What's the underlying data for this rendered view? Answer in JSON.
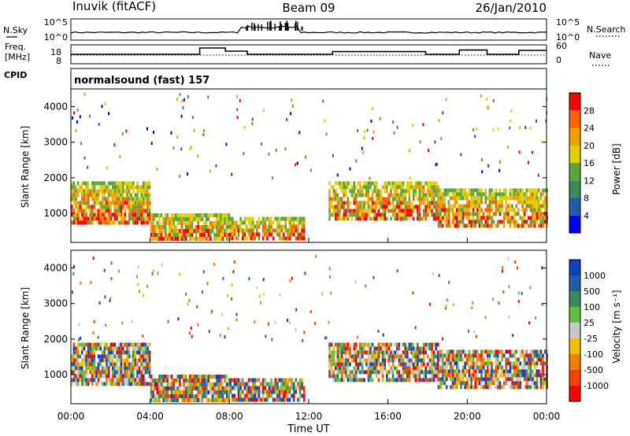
{
  "header": {
    "station": "Inuvik (fitACF)",
    "beam": "Beam 09",
    "date": "26/Jan/2010"
  },
  "summary_panels": {
    "nsky_label": "N.Sky",
    "nsky_ticks": [
      "10^5",
      "10^0"
    ],
    "nsearch_label": "N.Search",
    "nsearch_ticks": [
      "10^5",
      "10^0"
    ],
    "freq_label_1": "Freq.",
    "freq_label_2": "[MHz]",
    "freq_ticks": [
      "18",
      "8"
    ],
    "nave_label": "Nave",
    "nave_ticks": [
      "60",
      "0"
    ],
    "cpid_label": "CPID",
    "cpid_value": "normalsound (fast) 157"
  },
  "colors": {
    "power_scale": [
      "#0000ff",
      "#1f5fa8",
      "#3a8a5a",
      "#5aa63a",
      "#e0d000",
      "#f0a000",
      "#ff6000",
      "#ff0000"
    ],
    "velocity_scale": [
      "#1040c0",
      "#1f5fa8",
      "#3a8a5a",
      "#66c040",
      "#c8c8c8",
      "#f0c000",
      "#f08000",
      "#ff4000",
      "#ff0000"
    ]
  },
  "chart_data": [
    {
      "type": "heatmap",
      "title": "",
      "ylabel": "Slant Range [km]",
      "ylim": [
        180,
        4500
      ],
      "yticks": [
        "4000",
        "3000",
        "2000",
        "1000"
      ],
      "colorbar_label": "Power [dB]",
      "colorbar_ticks": [
        "28",
        "24",
        "20",
        "16",
        "12",
        "8",
        "4"
      ],
      "zlim": [
        0,
        30
      ]
    },
    {
      "type": "heatmap",
      "title": "",
      "ylabel": "Slant Range [km]",
      "ylim": [
        180,
        4500
      ],
      "yticks": [
        "4000",
        "3000",
        "2000",
        "1000"
      ],
      "colorbar_label": "Velocity [m s⁻¹]",
      "colorbar_ticks": [
        "1000",
        "500",
        "100",
        "25",
        "-25",
        "-100",
        "-500",
        "-1000"
      ],
      "xlabel": "Time UT",
      "xticks": [
        "00:00",
        "04:00",
        "08:00",
        "12:00",
        "16:00",
        "20:00",
        "00:00"
      ],
      "xlim": [
        0,
        24
      ]
    }
  ]
}
